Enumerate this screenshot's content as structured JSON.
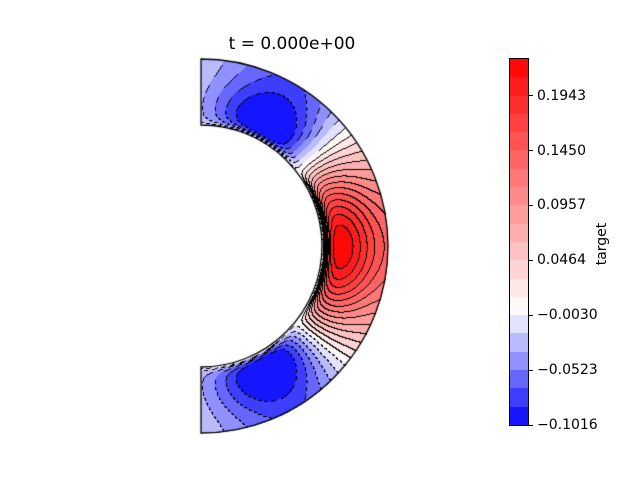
{
  "title": "t = 0.000e+00",
  "colorbar": {
    "label": "target",
    "tick_labels": [
      "0.1943",
      "0.1450",
      "0.0957",
      "0.0464",
      "−0.0030",
      "−0.0523",
      "−0.1016"
    ],
    "outline_color": "#000000"
  },
  "chart_data": {
    "type": "filled_contour",
    "title": "t = 0.000e+00",
    "time_label": "t = 0.000e+00",
    "colorbar_label": "target",
    "domain": "right half of an annulus (polar angle from -90 to +90 degrees), flat edges on the left, inner-to-outer radius ratio ~0.65",
    "colormap": "diverging blue-white-red (bwr), white centered at value 0",
    "vmin": -0.1016,
    "vmax": 0.2272,
    "n_bands": 20,
    "level_step": 0.016439,
    "levels": [
      -0.1016,
      -0.0852,
      -0.0687,
      -0.0523,
      -0.0359,
      -0.0194,
      -0.003,
      0.0135,
      0.0299,
      0.0464,
      0.0628,
      0.0793,
      0.0957,
      0.1121,
      0.1285,
      0.145,
      0.1615,
      0.1779,
      0.1943,
      0.2107,
      0.2272
    ],
    "colorbar_tick_values": [
      0.1943,
      0.145,
      0.0957,
      0.0464,
      -0.003,
      -0.0523,
      -0.1016
    ],
    "contour_lines": {
      "positive_style": "solid",
      "negative_style": "dashed",
      "color": "#000000"
    },
    "field_pattern": {
      "max": {
        "value": 0.2272,
        "location": "equator (mid height), just outside the inner arc"
      },
      "min": {
        "value": -0.1016,
        "location": "near both poles (~62 deg latitude), about a quarter of the way from inner to outer radius"
      },
      "zero_crossing_latitude_deg": 39,
      "inner_boundary_value": 0,
      "symmetry": "mirror-symmetric about the equator",
      "notes": "dense bundle of contour lines (steep gradient) hugging the inner arc; light near-white patches with stepped contours at the flat polar edges"
    },
    "colors": {
      "negative_end": "#0000ff",
      "center": "#ffffff",
      "positive_end": "#ff0000"
    }
  }
}
